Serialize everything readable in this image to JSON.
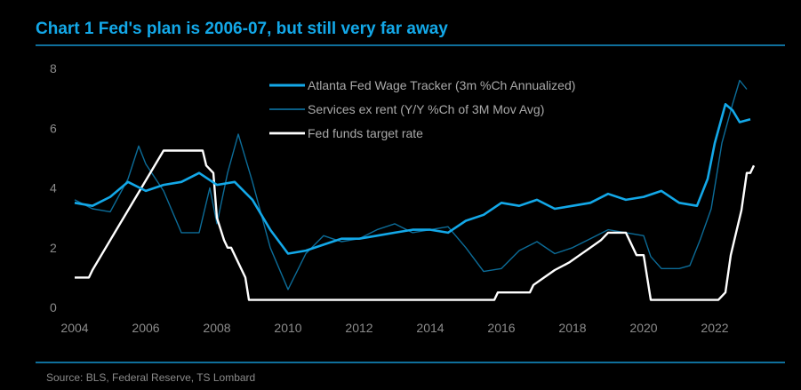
{
  "header": {
    "title": "Chart 1 Fed's plan is 2006-07, but still very far away"
  },
  "footer": {
    "source": "Source: BLS, Federal Reserve, TS Lombard"
  },
  "chart_data": {
    "type": "line",
    "title": "Chart 1 Fed's plan is 2006-07, but still very far away",
    "xlabel": "",
    "ylabel": "",
    "xlim": [
      2004,
      2023.3
    ],
    "ylim": [
      0,
      8
    ],
    "x_ticks": [
      "2004",
      "2006",
      "2008",
      "2010",
      "2012",
      "2014",
      "2016",
      "2018",
      "2020",
      "2022"
    ],
    "y_ticks": [
      "0",
      "2",
      "4",
      "6",
      "8"
    ],
    "grid": false,
    "legend_position": "top-center",
    "series": [
      {
        "name": "Atlanta Fed Wage Tracker (3m %Ch Annualized)",
        "color": "#13a8e8",
        "x": [
          2004.0,
          2004.5,
          2005.0,
          2005.5,
          2006.0,
          2006.5,
          2007.0,
          2007.5,
          2008.0,
          2008.5,
          2009.0,
          2009.5,
          2010.0,
          2010.5,
          2011.0,
          2011.5,
          2012.0,
          2012.5,
          2013.0,
          2013.5,
          2014.0,
          2014.5,
          2015.0,
          2015.5,
          2016.0,
          2016.5,
          2017.0,
          2017.5,
          2018.0,
          2018.5,
          2019.0,
          2019.5,
          2020.0,
          2020.5,
          2021.0,
          2021.5,
          2021.8,
          2022.0,
          2022.3,
          2022.5,
          2022.7,
          2023.0
        ],
        "y": [
          3.5,
          3.4,
          3.7,
          4.2,
          3.9,
          4.1,
          4.2,
          4.5,
          4.1,
          4.2,
          3.6,
          2.6,
          1.8,
          1.9,
          2.1,
          2.3,
          2.3,
          2.4,
          2.5,
          2.6,
          2.6,
          2.5,
          2.9,
          3.1,
          3.5,
          3.4,
          3.6,
          3.3,
          3.4,
          3.5,
          3.8,
          3.6,
          3.7,
          3.9,
          3.5,
          3.4,
          4.3,
          5.5,
          6.8,
          6.6,
          6.2,
          6.3
        ]
      },
      {
        "name": "Services ex rent (Y/Y %Ch of 3M Mov Avg)",
        "color": "#0c6c98",
        "x": [
          2004.0,
          2004.5,
          2005.0,
          2005.5,
          2005.8,
          2006.0,
          2006.5,
          2007.0,
          2007.5,
          2007.8,
          2008.0,
          2008.3,
          2008.6,
          2009.0,
          2009.5,
          2010.0,
          2010.5,
          2011.0,
          2011.5,
          2012.0,
          2012.5,
          2013.0,
          2013.5,
          2014.0,
          2014.5,
          2015.0,
          2015.5,
          2016.0,
          2016.5,
          2017.0,
          2017.5,
          2018.0,
          2018.5,
          2019.0,
          2019.5,
          2020.0,
          2020.2,
          2020.5,
          2021.0,
          2021.3,
          2021.6,
          2021.9,
          2022.2,
          2022.5,
          2022.7,
          2022.9
        ],
        "y": [
          3.6,
          3.3,
          3.2,
          4.3,
          5.4,
          4.8,
          3.9,
          2.5,
          2.5,
          4.0,
          2.8,
          4.5,
          5.8,
          4.2,
          2.0,
          0.6,
          1.8,
          2.4,
          2.2,
          2.3,
          2.6,
          2.8,
          2.5,
          2.6,
          2.7,
          2.0,
          1.2,
          1.3,
          1.9,
          2.2,
          1.8,
          2.0,
          2.3,
          2.6,
          2.5,
          2.4,
          1.7,
          1.3,
          1.3,
          1.4,
          2.3,
          3.3,
          5.5,
          6.8,
          7.6,
          7.3
        ]
      },
      {
        "name": "Fed funds target rate",
        "color": "#ffffff",
        "x": [
          2004.0,
          2004.4,
          2004.5,
          2005.0,
          2005.5,
          2006.0,
          2006.5,
          2007.0,
          2007.6,
          2007.7,
          2007.9,
          2008.0,
          2008.2,
          2008.3,
          2008.4,
          2008.8,
          2008.9,
          2009.0,
          2015.8,
          2015.9,
          2016.0,
          2016.8,
          2016.9,
          2017.2,
          2017.5,
          2017.9,
          2018.2,
          2018.5,
          2018.8,
          2019.0,
          2019.5,
          2019.6,
          2019.7,
          2019.8,
          2020.0,
          2020.2,
          2022.1,
          2022.3,
          2022.45,
          2022.6,
          2022.75,
          2022.9,
          2023.0,
          2023.1
        ],
        "y": [
          1.0,
          1.0,
          1.25,
          2.25,
          3.25,
          4.25,
          5.25,
          5.25,
          5.25,
          4.75,
          4.5,
          3.0,
          2.25,
          2.0,
          2.0,
          1.0,
          0.25,
          0.25,
          0.25,
          0.5,
          0.5,
          0.5,
          0.75,
          1.0,
          1.25,
          1.5,
          1.75,
          2.0,
          2.25,
          2.5,
          2.5,
          2.25,
          2.0,
          1.75,
          1.75,
          0.25,
          0.25,
          0.5,
          1.75,
          2.5,
          3.25,
          4.5,
          4.5,
          4.75
        ]
      }
    ]
  }
}
